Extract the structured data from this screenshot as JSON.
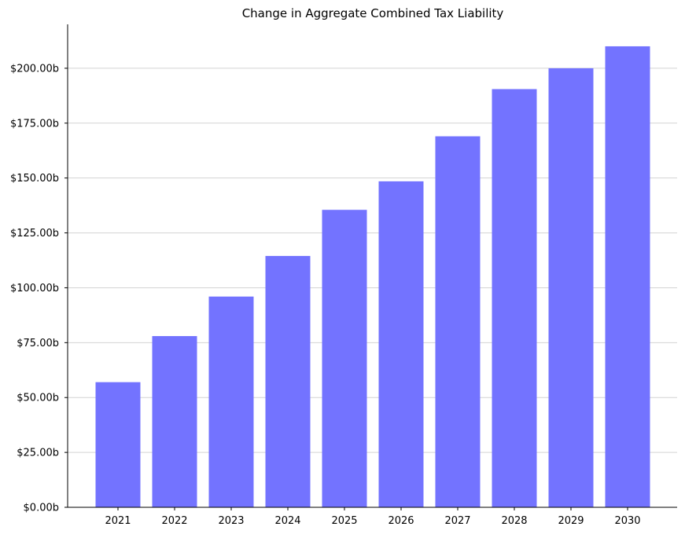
{
  "chart_data": {
    "type": "bar",
    "title": "Change in Aggregate Combined Tax Liability",
    "xlabel": "",
    "ylabel": "",
    "categories": [
      "2021",
      "2022",
      "2023",
      "2024",
      "2025",
      "2026",
      "2027",
      "2028",
      "2029",
      "2030"
    ],
    "values": [
      57,
      78,
      96,
      114.5,
      135.5,
      148.5,
      169,
      190.5,
      200,
      210
    ],
    "value_unit": "billions of dollars",
    "ylim": [
      0,
      220
    ],
    "yticks": [
      0,
      25,
      50,
      75,
      100,
      125,
      150,
      175,
      200
    ],
    "ytick_labels": [
      "$0.00b",
      "$25.00b",
      "$50.00b",
      "$75.00b",
      "$100.00b",
      "$125.00b",
      "$150.00b",
      "$175.00b",
      "$200.00b"
    ],
    "grid": "horizontal",
    "legend": "none",
    "colors": {
      "bar": "#7373ff",
      "grid": "#d3d3d3",
      "axis": "#000000"
    }
  }
}
